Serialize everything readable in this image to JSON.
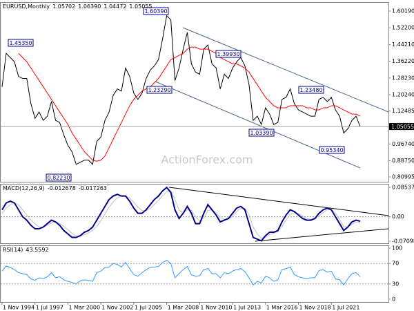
{
  "chart_data": [
    {
      "type": "line",
      "title": "EURUSD,Monthly",
      "open": 1.05702,
      "high": {
        "value": 1.0639,
        "label": "1.06390"
      },
      "low": 1.04472,
      "close": 1.05055,
      "watermark": "ActionForex.com",
      "ylim": [
        0.80995,
        1.6019
      ],
      "yticks": [
        {
          "value": 1.6019,
          "label": "1.60190"
        },
        {
          "value": 1.522,
          "label": "1.52200"
        },
        {
          "value": 1.4421,
          "label": "1.44210"
        },
        {
          "value": 1.3622,
          "label": "1.36220"
        },
        {
          "value": 1.2823,
          "label": "1.28230"
        },
        {
          "value": 1.2024,
          "label": "1.20240"
        },
        1.12485,
        {
          "value": 0.9674,
          "label": "0.96740"
        },
        {
          "value": 0.8875,
          "label": "0.88750"
        },
        0.80995
      ],
      "annotations": [
        {
          "value": 1.4535,
          "label": "1.45350"
        },
        {
          "value": 1.6039,
          "label": "1.60390"
        },
        {
          "value": 1.3993,
          "label": "1.39930"
        },
        {
          "value": 1.2329,
          "label": "1.23290"
        },
        {
          "value": 1.2348,
          "label": "1.23480"
        },
        {
          "value": 1.0339,
          "label": "1.03390"
        },
        {
          "value": 0.9534,
          "label": "0.95340"
        },
        {
          "value": 0.8223,
          "label": "0.82230"
        }
      ],
      "series": [
        {
          "color": "#000000",
          "values": [
            1.24,
            1.4,
            1.38,
            1.36,
            1.29,
            1.28,
            1.28,
            1.16,
            1.09,
            1.12,
            1.08,
            1.1,
            1.17,
            1.08,
            1.07,
            1.01,
            0.96,
            0.93,
            0.87,
            0.88,
            0.89,
            0.89,
            0.87,
            0.98,
            1.0,
            1.08,
            1.12,
            1.2,
            1.23,
            1.22,
            1.33,
            1.29,
            1.21,
            1.18,
            1.21,
            1.28,
            1.32,
            1.34,
            1.37,
            1.47,
            1.58,
            1.56,
            1.27,
            1.33,
            1.42,
            1.5,
            1.35,
            1.31,
            1.3,
            1.42,
            1.44,
            1.35,
            1.33,
            1.23,
            1.3,
            1.28,
            1.33,
            1.36,
            1.38,
            1.34,
            1.25,
            1.08,
            1.1,
            1.06,
            1.14,
            1.11,
            1.06,
            1.07,
            1.18,
            1.19,
            1.23,
            1.16,
            1.13,
            1.12,
            1.11,
            1.1,
            1.1,
            1.18,
            1.19,
            1.17,
            1.19,
            1.13,
            1.1,
            1.02,
            1.04,
            1.08,
            1.1,
            1.05
          ]
        },
        {
          "color": "#ff0000",
          "values": [
            null,
            null,
            null,
            null,
            1.4,
            1.38,
            1.36,
            1.33,
            1.3,
            1.27,
            1.24,
            1.21,
            1.18,
            1.15,
            1.12,
            1.09,
            1.06,
            1.02,
            0.99,
            0.96,
            0.93,
            0.91,
            0.89,
            0.885,
            0.89,
            0.91,
            0.95,
            0.99,
            1.03,
            1.07,
            1.11,
            1.15,
            1.18,
            1.2,
            1.22,
            1.23,
            1.24,
            1.26,
            1.28,
            1.31,
            1.34,
            1.37,
            1.38,
            1.39,
            1.4,
            1.42,
            1.43,
            1.43,
            1.42,
            1.42,
            1.42,
            1.41,
            1.4,
            1.38,
            1.37,
            1.36,
            1.35,
            1.35,
            1.34,
            1.33,
            1.31,
            1.28,
            1.25,
            1.22,
            1.19,
            1.17,
            1.15,
            1.14,
            1.14,
            1.14,
            1.15,
            1.15,
            1.15,
            1.15,
            1.14,
            1.14,
            1.13,
            1.13,
            1.14,
            1.14,
            1.15,
            1.15,
            1.14,
            1.13,
            1.12,
            1.11,
            1.11,
            1.1
          ]
        }
      ]
    },
    {
      "type": "line",
      "title": "MACD(12,26,9)",
      "main": -0.012678,
      "signal": -0.017263,
      "level_lines": true,
      "ylim": [
        -0.070989,
        0.085379
      ],
      "yticks": [
        0.085379,
        {
          "value": 0,
          "label": "0.00"
        },
        -0.070989
      ],
      "series": [
        {
          "color": "#c0c0c0",
          "values": [
            0.01,
            0.025,
            0.035,
            0.04,
            0.035,
            0.02,
            0.005,
            -0.01,
            -0.02,
            -0.03,
            -0.03,
            -0.025,
            -0.018,
            -0.015,
            -0.02,
            -0.028,
            -0.038,
            -0.048,
            -0.055,
            -0.056,
            -0.052,
            -0.047,
            -0.04,
            -0.028,
            -0.012,
            0.008,
            0.028,
            0.043,
            0.055,
            0.06,
            0.06,
            0.054,
            0.042,
            0.028,
            0.018,
            0.017,
            0.024,
            0.036,
            0.048,
            0.06,
            0.073,
            0.076,
            0.05,
            0.02,
            0.01,
            0.02,
            0.018,
            0.0,
            -0.012,
            -0.004,
            0.018,
            0.02,
            0.012,
            -0.002,
            -0.008,
            -0.007,
            0.002,
            0.015,
            0.024,
            0.024,
            0.005,
            -0.03,
            -0.05,
            -0.062,
            -0.06,
            -0.052,
            -0.048,
            -0.043,
            -0.028,
            -0.01,
            0.007,
            0.012,
            0.009,
            0.002,
            -0.005,
            -0.008,
            -0.007,
            0.002,
            0.012,
            0.02,
            0.021,
            0.01,
            -0.008,
            -0.028,
            -0.03,
            -0.022,
            -0.015,
            -0.017
          ]
        },
        {
          "color": "#00008b",
          "values": [
            0.02,
            0.04,
            0.045,
            0.04,
            0.02,
            0.0,
            -0.01,
            -0.025,
            -0.035,
            -0.035,
            -0.03,
            -0.02,
            -0.01,
            -0.015,
            -0.025,
            -0.04,
            -0.05,
            -0.06,
            -0.06,
            -0.055,
            -0.045,
            -0.04,
            -0.03,
            -0.01,
            0.01,
            0.03,
            0.05,
            0.06,
            0.065,
            0.06,
            0.06,
            0.045,
            0.025,
            0.01,
            0.01,
            0.02,
            0.035,
            0.05,
            0.06,
            0.075,
            0.085,
            0.07,
            0.02,
            -0.005,
            0.01,
            0.03,
            0.01,
            -0.02,
            -0.02,
            0.01,
            0.035,
            0.02,
            0.005,
            -0.015,
            -0.01,
            -0.005,
            0.01,
            0.025,
            0.03,
            0.02,
            -0.02,
            -0.06,
            -0.065,
            -0.07,
            -0.055,
            -0.045,
            -0.045,
            -0.04,
            -0.015,
            0.005,
            0.02,
            0.015,
            0.005,
            -0.005,
            -0.01,
            -0.01,
            -0.005,
            0.01,
            0.02,
            0.025,
            0.02,
            0.0,
            -0.02,
            -0.04,
            -0.03,
            -0.015,
            -0.01,
            -0.013
          ]
        }
      ]
    },
    {
      "type": "line",
      "title": "RSI(14)",
      "current": 43.5592,
      "level_lines": true,
      "ylim": [
        0,
        100
      ],
      "yticks": [
        100,
        70,
        30,
        0
      ],
      "categories": [
        "1 Nov 1994",
        null,
        null,
        null,
        null,
        null,
        null,
        null,
        "1 Jul 1997",
        null,
        null,
        null,
        null,
        null,
        null,
        null,
        "1 Mar 2000",
        null,
        null,
        null,
        null,
        null,
        null,
        null,
        "1 Nov 2002",
        null,
        null,
        null,
        null,
        null,
        null,
        null,
        "1 Jul 2005",
        null,
        null,
        null,
        null,
        null,
        null,
        null,
        "1 Mar 2008",
        null,
        null,
        null,
        null,
        null,
        null,
        null,
        "1 Nov 2010",
        null,
        null,
        null,
        null,
        null,
        null,
        null,
        "1 Jul 2013",
        null,
        null,
        null,
        null,
        null,
        null,
        null,
        "1 Mar 2016",
        null,
        null,
        null,
        null,
        null,
        null,
        null,
        "1 Nov 2018",
        null,
        null,
        null,
        null,
        null,
        null,
        null,
        "1 Jul 2021",
        null,
        null,
        null,
        null,
        null,
        null,
        null
      ],
      "series": [
        {
          "color": "#3399ff",
          "values": [
            55,
            65,
            62,
            58,
            52,
            50,
            48,
            40,
            37,
            42,
            40,
            44,
            52,
            42,
            44,
            38,
            35,
            33,
            30,
            36,
            38,
            37,
            35,
            52,
            55,
            62,
            63,
            70,
            68,
            63,
            72,
            60,
            48,
            45,
            52,
            58,
            62,
            63,
            64,
            72,
            76,
            70,
            42,
            50,
            58,
            64,
            48,
            45,
            46,
            58,
            60,
            50,
            50,
            42,
            52,
            50,
            55,
            58,
            60,
            54,
            42,
            28,
            35,
            32,
            45,
            42,
            35,
            38,
            58,
            60,
            63,
            48,
            44,
            42,
            40,
            42,
            42,
            56,
            58,
            53,
            55,
            40,
            38,
            28,
            40,
            50,
            52,
            44
          ]
        }
      ]
    }
  ]
}
